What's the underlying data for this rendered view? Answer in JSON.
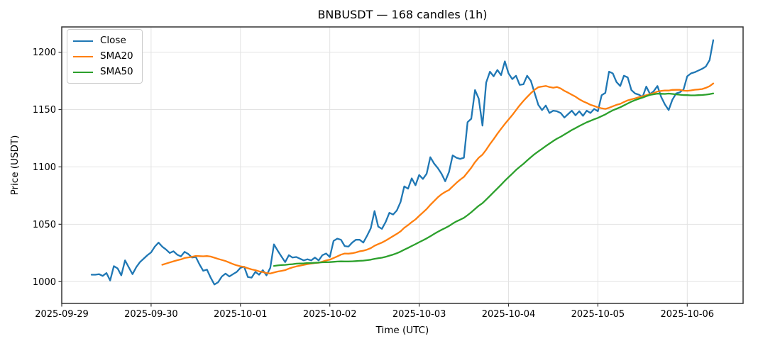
{
  "figure": {
    "title": "BNBUSDT — 168 candles (1h)",
    "xlabel": "Time (UTC)",
    "ylabel": "Price (USDT)"
  },
  "chart_data": {
    "type": "line",
    "title": "BNBUSDT — 168 candles (1h)",
    "symbol": "BNBUSDT",
    "candle_count": 168,
    "timeframe": "1h",
    "xlabel": "Time (UTC)",
    "ylabel": "Price (USDT)",
    "x_start": "2025-09-29 08:00",
    "x_step_hours": 1,
    "x_axis_unit": "hours since 2025-09-29 00:00 UTC",
    "x_data_start_hour": 8,
    "xlim": [
      0,
      183
    ],
    "ylim": [
      981,
      1222
    ],
    "x_ticks": [
      0,
      24,
      48,
      72,
      96,
      120,
      144,
      168
    ],
    "x_tick_labels": [
      "2025-09-29",
      "2025-09-30",
      "2025-10-01",
      "2025-10-02",
      "2025-10-03",
      "2025-10-04",
      "2025-10-05",
      "2025-10-06"
    ],
    "y_ticks": [
      1000,
      1050,
      1100,
      1150,
      1200
    ],
    "grid": true,
    "grid_color": "#e3e3e3",
    "spine_color": "#333333",
    "legend": {
      "position": "upper-left",
      "entries": [
        "Close",
        "SMA20",
        "SMA50"
      ]
    },
    "series": [
      {
        "name": "Close",
        "color": "#1f77b4",
        "values": [
          1006,
          1006,
          1006.5,
          1005,
          1007.5,
          1001,
          1013.5,
          1011.5,
          1005.5,
          1018.5,
          1012.5,
          1006.5,
          1012.5,
          1017,
          1020,
          1023,
          1025.5,
          1030.5,
          1034,
          1030.5,
          1028,
          1025,
          1026.5,
          1023.5,
          1022,
          1026,
          1024,
          1021,
          1021.5,
          1015,
          1009.5,
          1010.5,
          1003.5,
          997.5,
          999.5,
          1004.5,
          1007,
          1004.5,
          1006.5,
          1008.5,
          1012,
          1013,
          1004,
          1003.5,
          1008.5,
          1006,
          1010,
          1005.5,
          1012,
          1032.5,
          1027,
          1022,
          1017,
          1023,
          1021,
          1021.5,
          1020,
          1018.5,
          1019.5,
          1018.5,
          1021,
          1018.5,
          1023,
          1024.5,
          1021.5,
          1035.5,
          1037.5,
          1036.5,
          1031,
          1030.5,
          1034,
          1036.5,
          1036.5,
          1034,
          1040,
          1046.5,
          1061.5,
          1048,
          1046,
          1052,
          1060,
          1058.5,
          1062,
          1069.5,
          1083,
          1081,
          1090,
          1084,
          1093,
          1089.5,
          1094,
          1108.5,
          1103,
          1099,
          1094,
          1087.5,
          1095.5,
          1110,
          1108,
          1107,
          1108,
          1139,
          1142,
          1167,
          1159.5,
          1136,
          1173.5,
          1183,
          1179,
          1184.5,
          1180,
          1192,
          1181.5,
          1176.5,
          1179.5,
          1171.5,
          1172,
          1179.5,
          1175,
          1164.5,
          1154,
          1149.5,
          1153.5,
          1147,
          1149,
          1148.5,
          1147,
          1143,
          1146,
          1149,
          1145,
          1148.5,
          1144.5,
          1149,
          1147,
          1150.5,
          1148.5,
          1162.5,
          1164.5,
          1183,
          1181.5,
          1174,
          1170.5,
          1179.5,
          1178,
          1167,
          1164,
          1163,
          1161,
          1170,
          1163.5,
          1166,
          1170.5,
          1161,
          1154.5,
          1149.5,
          1158.5,
          1164,
          1165,
          1167.5,
          1179,
          1181.5,
          1182.5,
          1184,
          1185.5,
          1187.5,
          1193,
          1210.5
        ]
      },
      {
        "name": "SMA20",
        "color": "#ff7f0e",
        "derived": "rolling_mean_of_Close",
        "window": 20
      },
      {
        "name": "SMA50",
        "color": "#2ca02c",
        "derived": "rolling_mean_of_Close",
        "window": 50
      }
    ]
  }
}
